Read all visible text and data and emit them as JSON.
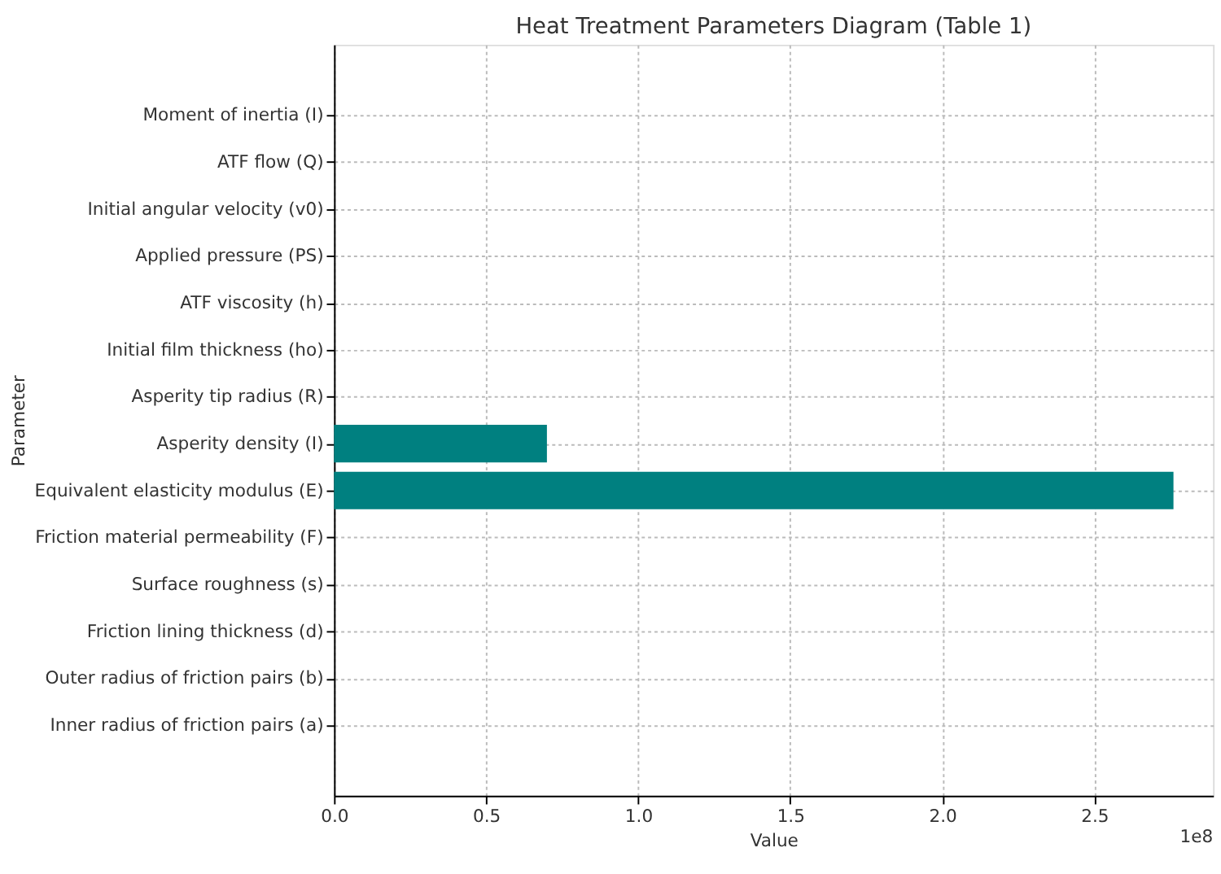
{
  "chart_data": {
    "type": "bar",
    "orientation": "horizontal",
    "title": "Heat Treatment Parameters Diagram (Table 1)",
    "xlabel": "Value",
    "ylabel": "Parameter",
    "categories": [
      "Moment of inertia (I)",
      "ATF flow (Q)",
      "Initial angular velocity (v0)",
      "Applied pressure (PS)",
      "ATF viscosity (h)",
      "Initial film thickness (ho)",
      "Asperity tip radius (R)",
      "Asperity density (I)",
      "Equivalent elasticity modulus (E)",
      "Friction material permeability (F)",
      "Surface roughness (s)",
      "Friction lining thickness (d)",
      "Outer radius of friction pairs (b)",
      "Inner radius of friction pairs (a)"
    ],
    "values": [
      0,
      0,
      0,
      0,
      0,
      0,
      0,
      0.7,
      2.76,
      0,
      0,
      0,
      0,
      0
    ],
    "color": "#008080",
    "xlim": [
      0,
      2.89
    ],
    "xticks": [
      {
        "value": 0,
        "label": "0.0"
      },
      0.5,
      {
        "value": 1,
        "label": "1.0"
      },
      1.5,
      {
        "value": 2,
        "label": "2.0"
      },
      2.5
    ],
    "annotations": [
      "1e8"
    ],
    "grid": true
  }
}
